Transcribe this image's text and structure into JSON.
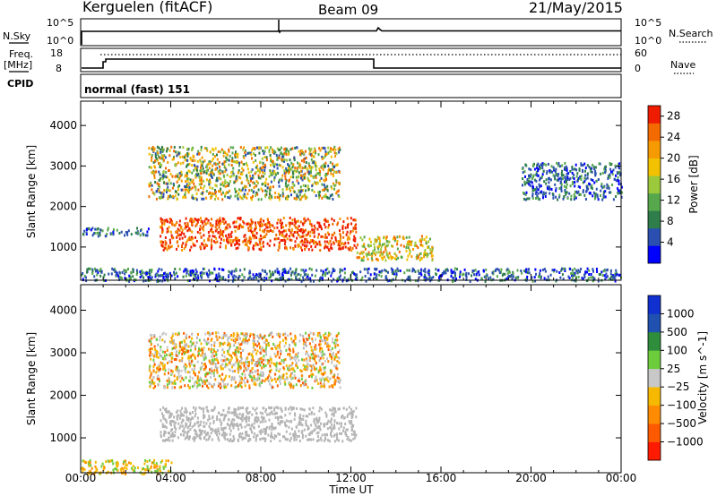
{
  "header": {
    "station": "Kerguelen (fitACF)",
    "beam": "Beam 09",
    "date": "21/May/2015"
  },
  "strip_labels": {
    "nsky": "N.Sky",
    "nsky_ticks": [
      "10^5",
      "10^0"
    ],
    "nsearch": "N.Search",
    "nsearch_ticks": [
      "10^5",
      "10^0"
    ],
    "freq": "Freq.",
    "freq_unit": "[MHz]",
    "freq_ticks": [
      "18",
      "8"
    ],
    "nave": "Nave",
    "nave_ticks": [
      "60",
      "0"
    ],
    "cpid": "CPID",
    "cpid_value": "normal (fast) 151"
  },
  "colors": {
    "power": [
      "#0000ff",
      "#2a4fb0",
      "#2e7d4a",
      "#57a84d",
      "#9cc83c",
      "#f2c200",
      "#f59a00",
      "#f26a00",
      "#ef1c00"
    ],
    "velocity": [
      "#ff1a00",
      "#ff5a00",
      "#ff8c00",
      "#f7b800",
      "#c8c8c8",
      "#6ccc3c",
      "#2e8e3c",
      "#2050b0",
      "#1030d0"
    ],
    "ground": "#b4b4b4"
  },
  "chart_data": [
    {
      "type": "heatmap",
      "panel": "power",
      "xlabel": "Time UT",
      "ylabel": "Slant Range [km]",
      "x_ticks": [
        "00:00",
        "04:00",
        "08:00",
        "12:00",
        "16:00",
        "20:00",
        "00:00"
      ],
      "xlim_hours": [
        0,
        24
      ],
      "y_ticks": [
        1000,
        2000,
        3000,
        4000
      ],
      "ylim_km": [
        180,
        4600
      ],
      "colorbar": {
        "label": "Power [dB]",
        "ticks": [
          4,
          8,
          12,
          16,
          20,
          24,
          28
        ],
        "range": [
          0,
          30
        ]
      },
      "regions": [
        {
          "name": "main echo",
          "t": [
            3.5,
            12.2
          ],
          "range": [
            950,
            1750
          ],
          "level": "high"
        },
        {
          "name": "post-midday tail",
          "t": [
            12.2,
            15.6
          ],
          "range": [
            700,
            1300
          ],
          "level": "medium"
        },
        {
          "name": "upper patches",
          "t": [
            3.0,
            11.5
          ],
          "range": [
            2200,
            3500
          ],
          "level": "mixed"
        },
        {
          "name": "early echo",
          "t": [
            0.0,
            3.0
          ],
          "range": [
            1300,
            1500
          ],
          "level": "low"
        },
        {
          "name": "late evening echo",
          "t": [
            19.5,
            24.0
          ],
          "range": [
            2200,
            3100
          ],
          "level": "low"
        },
        {
          "name": "near-range scatter",
          "t": [
            0.0,
            24.0
          ],
          "range": [
            180,
            500
          ],
          "level": "low"
        }
      ]
    },
    {
      "type": "heatmap",
      "panel": "velocity",
      "xlabel": "Time UT",
      "ylabel": "Slant Range [km]",
      "x_ticks": [
        "00:00",
        "04:00",
        "08:00",
        "12:00",
        "16:00",
        "20:00",
        "00:00"
      ],
      "xlim_hours": [
        0,
        24
      ],
      "y_ticks": [
        1000,
        2000,
        3000,
        4000
      ],
      "ylim_km": [
        180,
        4600
      ],
      "colorbar": {
        "label": "Velocity [m s^-1]",
        "ticks": [
          "1000",
          "500",
          "100",
          "25",
          "−25",
          "−100",
          "−500",
          "−1000"
        ]
      },
      "regions": [
        {
          "name": "ground scatter",
          "t": [
            3.5,
            12.2
          ],
          "range": [
            950,
            1750
          ],
          "velocity": "near zero"
        },
        {
          "name": "upper patches",
          "t": [
            3.0,
            11.5
          ],
          "range": [
            2200,
            3500
          ],
          "velocity": "mixed"
        },
        {
          "name": "near-range scatter",
          "t": [
            0.0,
            4.0
          ],
          "range": [
            180,
            500
          ],
          "velocity": "negative"
        }
      ]
    }
  ]
}
